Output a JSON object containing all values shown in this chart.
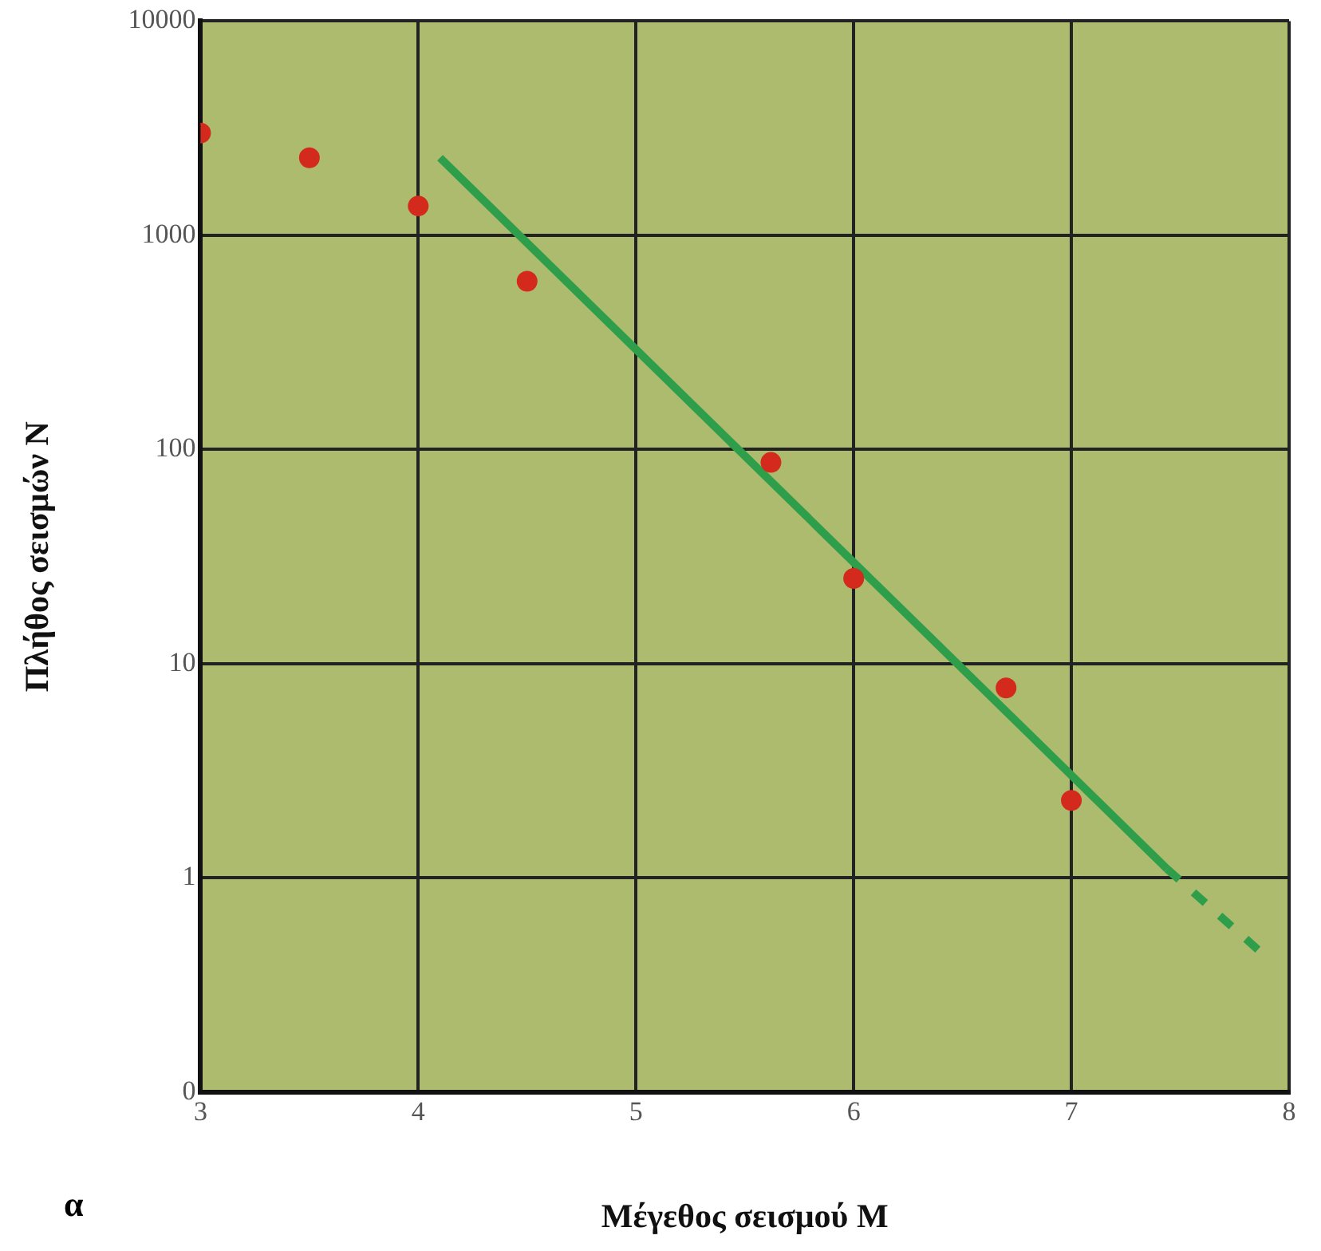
{
  "chart_data": {
    "type": "scatter",
    "xlabel": "Μέγεθος σεισμού M",
    "ylabel": "Πλήθος σεισμών N",
    "annotations": [
      "α"
    ],
    "xlim": [
      3,
      8
    ],
    "xticks": [
      3,
      4,
      5,
      6,
      7,
      8
    ],
    "ylim": [
      0.1,
      10000
    ],
    "yticks": [
      {
        "value": 0.1,
        "label": "0"
      },
      1,
      10,
      100,
      1000,
      10000
    ],
    "log": "y",
    "grid": true,
    "legend": false,
    "series": [
      {
        "color": "#d42a1e",
        "marker": "circle",
        "x": [
          3,
          3.5,
          4,
          4.5,
          5.62,
          6,
          6.7,
          7
        ],
        "values": [
          3000,
          2300,
          1370,
          610,
          87,
          25,
          7.7,
          2.3
        ]
      },
      {
        "type": "line",
        "color": "#2e9e4a",
        "marker": "none",
        "line_style": "solid",
        "x": [
          4.1,
          7.44
        ],
        "values": [
          2300,
          1.1
        ]
      },
      {
        "type": "line",
        "color": "#2e9e4a",
        "marker": "none",
        "line_style": "dashed",
        "x": [
          7.44,
          7.87
        ],
        "values": [
          1.1,
          0.45
        ]
      }
    ]
  }
}
